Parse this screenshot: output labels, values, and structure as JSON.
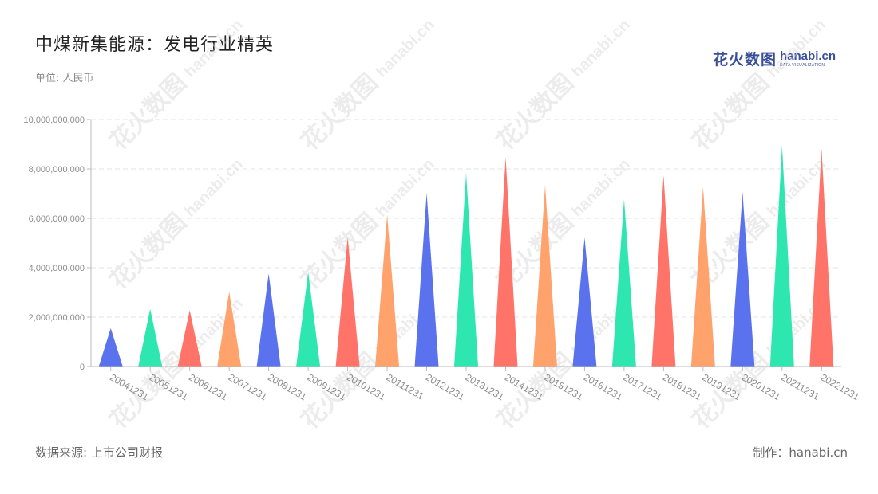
{
  "title": "中煤新集能源：发电行业精英",
  "unit_label": "单位: 人民币",
  "logo": {
    "cn": "花火数图",
    "en": "hanabi.cn",
    "en_sub": "DATA VISUALIZATION"
  },
  "footer": {
    "source": "数据来源: 上市公司财报",
    "credit": "制作：hanabi.cn"
  },
  "colors": {
    "palette": [
      "#5a72ee",
      "#2ee6b0",
      "#ff7369",
      "#ffa26b"
    ],
    "grid": "#e3e3e3",
    "axis": "#bbbbbb",
    "tick_text": "#8c8c8c"
  },
  "chart_data": {
    "type": "bar",
    "mark_shape": "triangle",
    "categories": [
      "20041231",
      "20051231",
      "20061231",
      "20071231",
      "20081231",
      "20091231",
      "20101231",
      "20111231",
      "20121231",
      "20131231",
      "20141231",
      "20151231",
      "20161231",
      "20171231",
      "20181231",
      "20191231",
      "20201231",
      "20211231",
      "20221231"
    ],
    "values": [
      1550000000,
      2330000000,
      2280000000,
      3030000000,
      3760000000,
      3820000000,
      5220000000,
      6150000000,
      7020000000,
      7830000000,
      8480000000,
      7340000000,
      5220000000,
      6780000000,
      7730000000,
      7270000000,
      7060000000,
      8950000000,
      8820000000
    ],
    "color_sequence": [
      "#5a72ee",
      "#2ee6b0",
      "#ff7369",
      "#ffa26b",
      "#5a72ee",
      "#2ee6b0",
      "#ff7369",
      "#ffa26b",
      "#5a72ee",
      "#2ee6b0",
      "#ff7369",
      "#ffa26b",
      "#5a72ee",
      "#2ee6b0",
      "#ff7369",
      "#ffa26b",
      "#5a72ee",
      "#2ee6b0",
      "#ff7369"
    ],
    "y_ticks": [
      0,
      2000000000,
      4000000000,
      6000000000,
      8000000000,
      10000000000
    ],
    "y_tick_labels": [
      "0",
      "2,000,000,000",
      "4,000,000,000",
      "6,000,000,000",
      "8,000,000,000",
      "10,000,000,000"
    ],
    "ylim": [
      0,
      10000000000
    ],
    "grid": true,
    "legend": "none",
    "xlabel": "",
    "ylabel": ""
  }
}
